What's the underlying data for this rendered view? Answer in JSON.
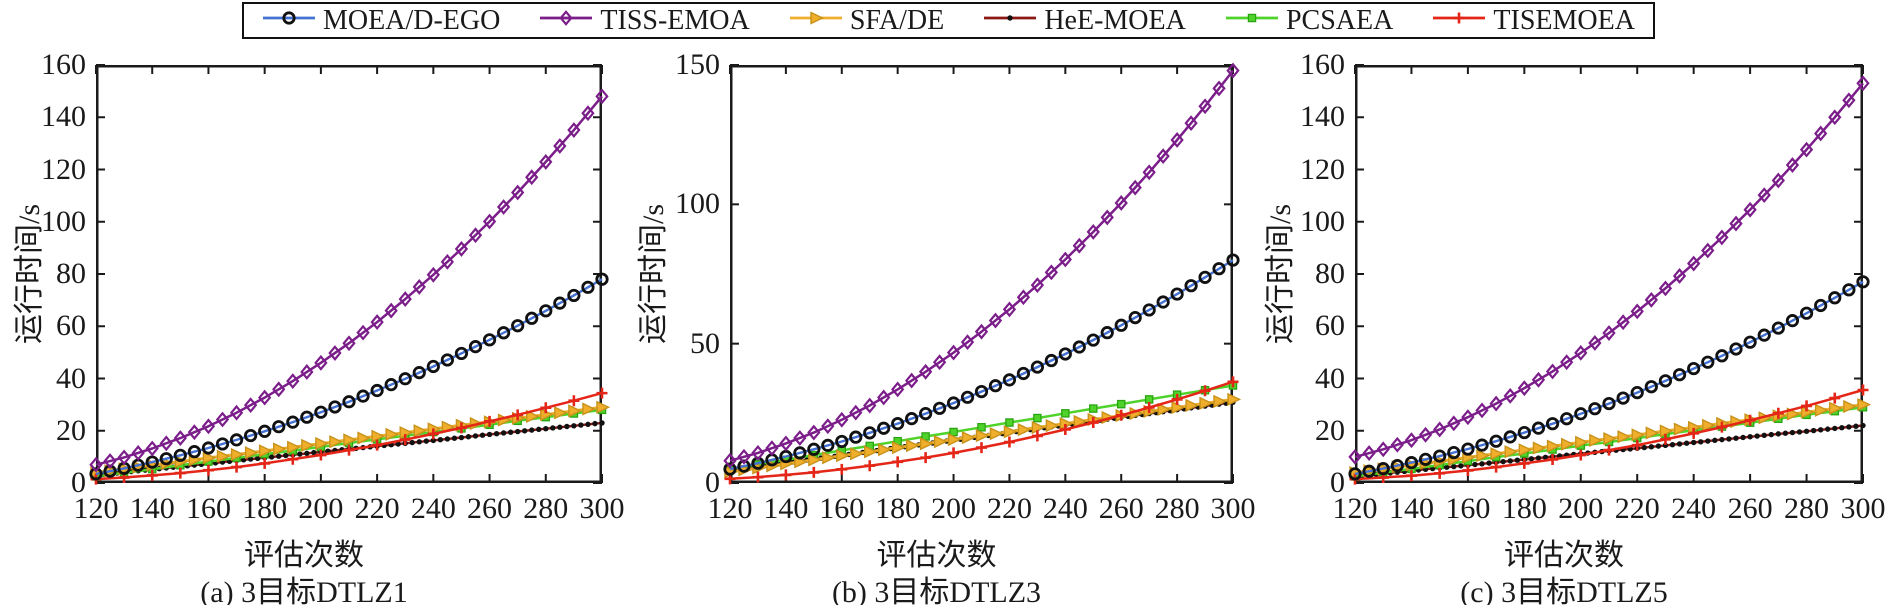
{
  "figure": {
    "background": "#ffffff",
    "axis_color": "#1a1a1a"
  },
  "legend": {
    "items": [
      {
        "label": "MOEA/D-EGO",
        "line_color": "#4472d4",
        "marker": "open-circle",
        "marker_color": "#111111"
      },
      {
        "label": "TISS-EMOA",
        "line_color": "#7b1e8a",
        "marker": "open-diamond",
        "marker_color": "#7b1e8a"
      },
      {
        "label": "SFA/DE",
        "line_color": "#efae2b",
        "marker": "triangle-right",
        "marker_color": "#efae2b"
      },
      {
        "label": "HeE-MOEA",
        "line_color": "#8b1815",
        "marker": "dot",
        "marker_color": "#111111"
      },
      {
        "label": "PCSAEA",
        "line_color": "#4fd32a",
        "marker": "square",
        "marker_color": "#4fd32a"
      },
      {
        "label": "TISEMOEA",
        "line_color": "#e42618",
        "marker": "plus",
        "marker_color": "#e42618"
      }
    ]
  },
  "chart_data": [
    {
      "type": "line",
      "caption": "(a) 3目标DTLZ1",
      "xlabel": "评估次数",
      "ylabel": "运行时间/s",
      "xlim": [
        120,
        300
      ],
      "ylim": [
        0,
        160
      ],
      "xticks": [
        120,
        140,
        160,
        180,
        200,
        220,
        240,
        260,
        280,
        300
      ],
      "yticks": [
        0,
        20,
        40,
        60,
        80,
        100,
        120,
        140,
        160
      ],
      "grid": false,
      "x": [
        120,
        130,
        140,
        150,
        160,
        170,
        180,
        190,
        200,
        210,
        220,
        230,
        240,
        250,
        260,
        270,
        280,
        290,
        300
      ],
      "series": [
        {
          "name": "MOEA/D-EGO",
          "values": [
            3.5,
            5.6,
            8.0,
            10.6,
            13.4,
            16.5,
            19.8,
            23.3,
            27.1,
            31.1,
            35.4,
            39.9,
            44.6,
            49.6,
            54.8,
            60.2,
            65.9,
            71.8,
            78.0
          ]
        },
        {
          "name": "TISS-EMOA",
          "values": [
            7.0,
            9.8,
            13.2,
            17.2,
            21.7,
            26.9,
            32.7,
            39.0,
            46.0,
            53.5,
            61.6,
            70.4,
            79.7,
            89.6,
            100.1,
            111.2,
            122.9,
            135.1,
            148.0
          ]
        },
        {
          "name": "SFA/DE",
          "values": [
            4.0,
            5.4,
            6.8,
            8.2,
            9.6,
            10.9,
            12.3,
            13.7,
            15.1,
            16.5,
            17.9,
            19.3,
            20.7,
            22.1,
            23.4,
            24.8,
            26.2,
            27.6,
            29.0
          ]
        },
        {
          "name": "HeE-MOEA",
          "values": [
            3.0,
            4.1,
            5.2,
            6.3,
            7.4,
            8.6,
            9.7,
            10.8,
            11.9,
            13.0,
            14.1,
            15.2,
            16.3,
            17.4,
            18.6,
            19.7,
            20.8,
            21.9,
            23.0
          ]
        },
        {
          "name": "PCSAEA",
          "values": [
            2.5,
            3.9,
            5.3,
            6.8,
            8.2,
            9.6,
            11.0,
            12.4,
            13.8,
            15.3,
            16.7,
            18.1,
            19.5,
            20.9,
            22.3,
            23.8,
            25.2,
            26.6,
            28.0
          ]
        },
        {
          "name": "TISEMOEA",
          "values": [
            1.5,
            2.1,
            2.9,
            3.8,
            4.9,
            6.1,
            7.5,
            9.1,
            10.7,
            12.6,
            14.5,
            16.6,
            18.8,
            21.1,
            23.6,
            26.1,
            28.8,
            31.5,
            34.4
          ]
        }
      ]
    },
    {
      "type": "line",
      "caption": "(b) 3目标DTLZ3",
      "xlabel": "评估次数",
      "ylabel": "运行时间/s",
      "xlim": [
        120,
        300
      ],
      "ylim": [
        0,
        150
      ],
      "xticks": [
        120,
        140,
        160,
        180,
        200,
        220,
        240,
        260,
        280,
        300
      ],
      "yticks": [
        0,
        50,
        100,
        150
      ],
      "grid": false,
      "x": [
        120,
        130,
        140,
        150,
        160,
        170,
        180,
        190,
        200,
        210,
        220,
        230,
        240,
        250,
        260,
        270,
        280,
        290,
        300
      ],
      "series": [
        {
          "name": "MOEA/D-EGO",
          "values": [
            5.0,
            7.1,
            9.5,
            12.1,
            14.9,
            18.0,
            21.3,
            24.9,
            28.7,
            32.8,
            37.0,
            41.6,
            46.3,
            51.3,
            56.6,
            62.1,
            67.8,
            73.8,
            80.0
          ]
        },
        {
          "name": "TISS-EMOA",
          "values": [
            8.0,
            10.8,
            14.2,
            18.1,
            22.7,
            27.8,
            33.6,
            39.9,
            46.8,
            54.3,
            62.3,
            71.0,
            80.2,
            90.1,
            100.5,
            111.5,
            123.1,
            135.2,
            148.0
          ]
        },
        {
          "name": "SFA/DE",
          "values": [
            4.0,
            5.4,
            6.9,
            8.3,
            9.8,
            11.2,
            12.7,
            14.1,
            15.6,
            17.0,
            18.4,
            19.9,
            21.3,
            22.8,
            24.2,
            25.7,
            27.1,
            28.6,
            30.0
          ]
        },
        {
          "name": "HeE-MOEA",
          "values": [
            4.5,
            5.9,
            7.2,
            8.6,
            9.9,
            11.3,
            12.7,
            14.0,
            15.4,
            16.7,
            18.1,
            19.5,
            20.8,
            22.2,
            23.6,
            24.9,
            26.3,
            27.6,
            29.0
          ]
        },
        {
          "name": "PCSAEA",
          "values": [
            5.0,
            6.7,
            8.3,
            10.0,
            11.7,
            13.3,
            15.0,
            16.7,
            18.3,
            20.0,
            21.7,
            23.3,
            25.0,
            26.7,
            28.3,
            30.0,
            31.7,
            33.3,
            35.0
          ]
        },
        {
          "name": "TISEMOEA",
          "values": [
            1.5,
            2.1,
            2.9,
            3.8,
            4.9,
            6.2,
            7.6,
            9.1,
            10.8,
            12.7,
            14.7,
            16.9,
            19.2,
            21.7,
            24.3,
            27.1,
            30.0,
            33.1,
            36.3
          ]
        }
      ]
    },
    {
      "type": "line",
      "caption": "(c) 3目标DTLZ5",
      "xlabel": "评估次数",
      "ylabel": "运行时间/s",
      "xlim": [
        120,
        300
      ],
      "ylim": [
        0,
        160
      ],
      "xticks": [
        120,
        140,
        160,
        180,
        200,
        220,
        240,
        260,
        280,
        300
      ],
      "yticks": [
        0,
        20,
        40,
        60,
        80,
        100,
        120,
        140,
        160
      ],
      "grid": false,
      "x": [
        120,
        130,
        140,
        150,
        160,
        170,
        180,
        190,
        200,
        210,
        220,
        230,
        240,
        250,
        260,
        270,
        280,
        290,
        300
      ],
      "series": [
        {
          "name": "MOEA/D-EGO",
          "values": [
            3.5,
            5.5,
            7.8,
            10.3,
            13.0,
            16.0,
            19.3,
            22.7,
            26.5,
            30.4,
            34.6,
            39.1,
            43.8,
            48.7,
            53.9,
            59.3,
            65.0,
            70.9,
            77.0
          ]
        },
        {
          "name": "TISS-EMOA",
          "values": [
            10.0,
            12.9,
            16.4,
            20.5,
            25.2,
            30.4,
            36.3,
            42.7,
            49.8,
            57.4,
            65.7,
            74.5,
            84.0,
            94.0,
            104.6,
            115.8,
            127.6,
            140.0,
            153.0
          ]
        },
        {
          "name": "SFA/DE",
          "values": [
            4.0,
            5.4,
            6.9,
            8.3,
            9.8,
            11.2,
            12.7,
            14.1,
            15.6,
            17.0,
            18.4,
            19.9,
            21.3,
            22.8,
            24.2,
            25.7,
            27.1,
            28.6,
            30.0
          ]
        },
        {
          "name": "HeE-MOEA",
          "values": [
            2.5,
            3.6,
            4.7,
            5.8,
            6.8,
            7.9,
            9.0,
            10.1,
            11.2,
            12.3,
            13.3,
            14.4,
            15.5,
            16.6,
            17.7,
            18.8,
            19.8,
            20.9,
            22.0
          ]
        },
        {
          "name": "PCSAEA",
          "values": [
            2.5,
            4.0,
            5.4,
            6.9,
            8.4,
            9.9,
            11.3,
            12.8,
            14.3,
            15.7,
            17.2,
            18.7,
            20.2,
            21.6,
            23.1,
            24.6,
            26.1,
            27.5,
            29.0
          ]
        },
        {
          "name": "TISEMOEA",
          "values": [
            1.5,
            2.1,
            2.8,
            3.7,
            4.8,
            6.1,
            7.5,
            9.0,
            10.7,
            12.6,
            14.5,
            16.7,
            19.0,
            21.4,
            24.0,
            26.7,
            29.5,
            32.5,
            35.6
          ]
        }
      ]
    }
  ]
}
